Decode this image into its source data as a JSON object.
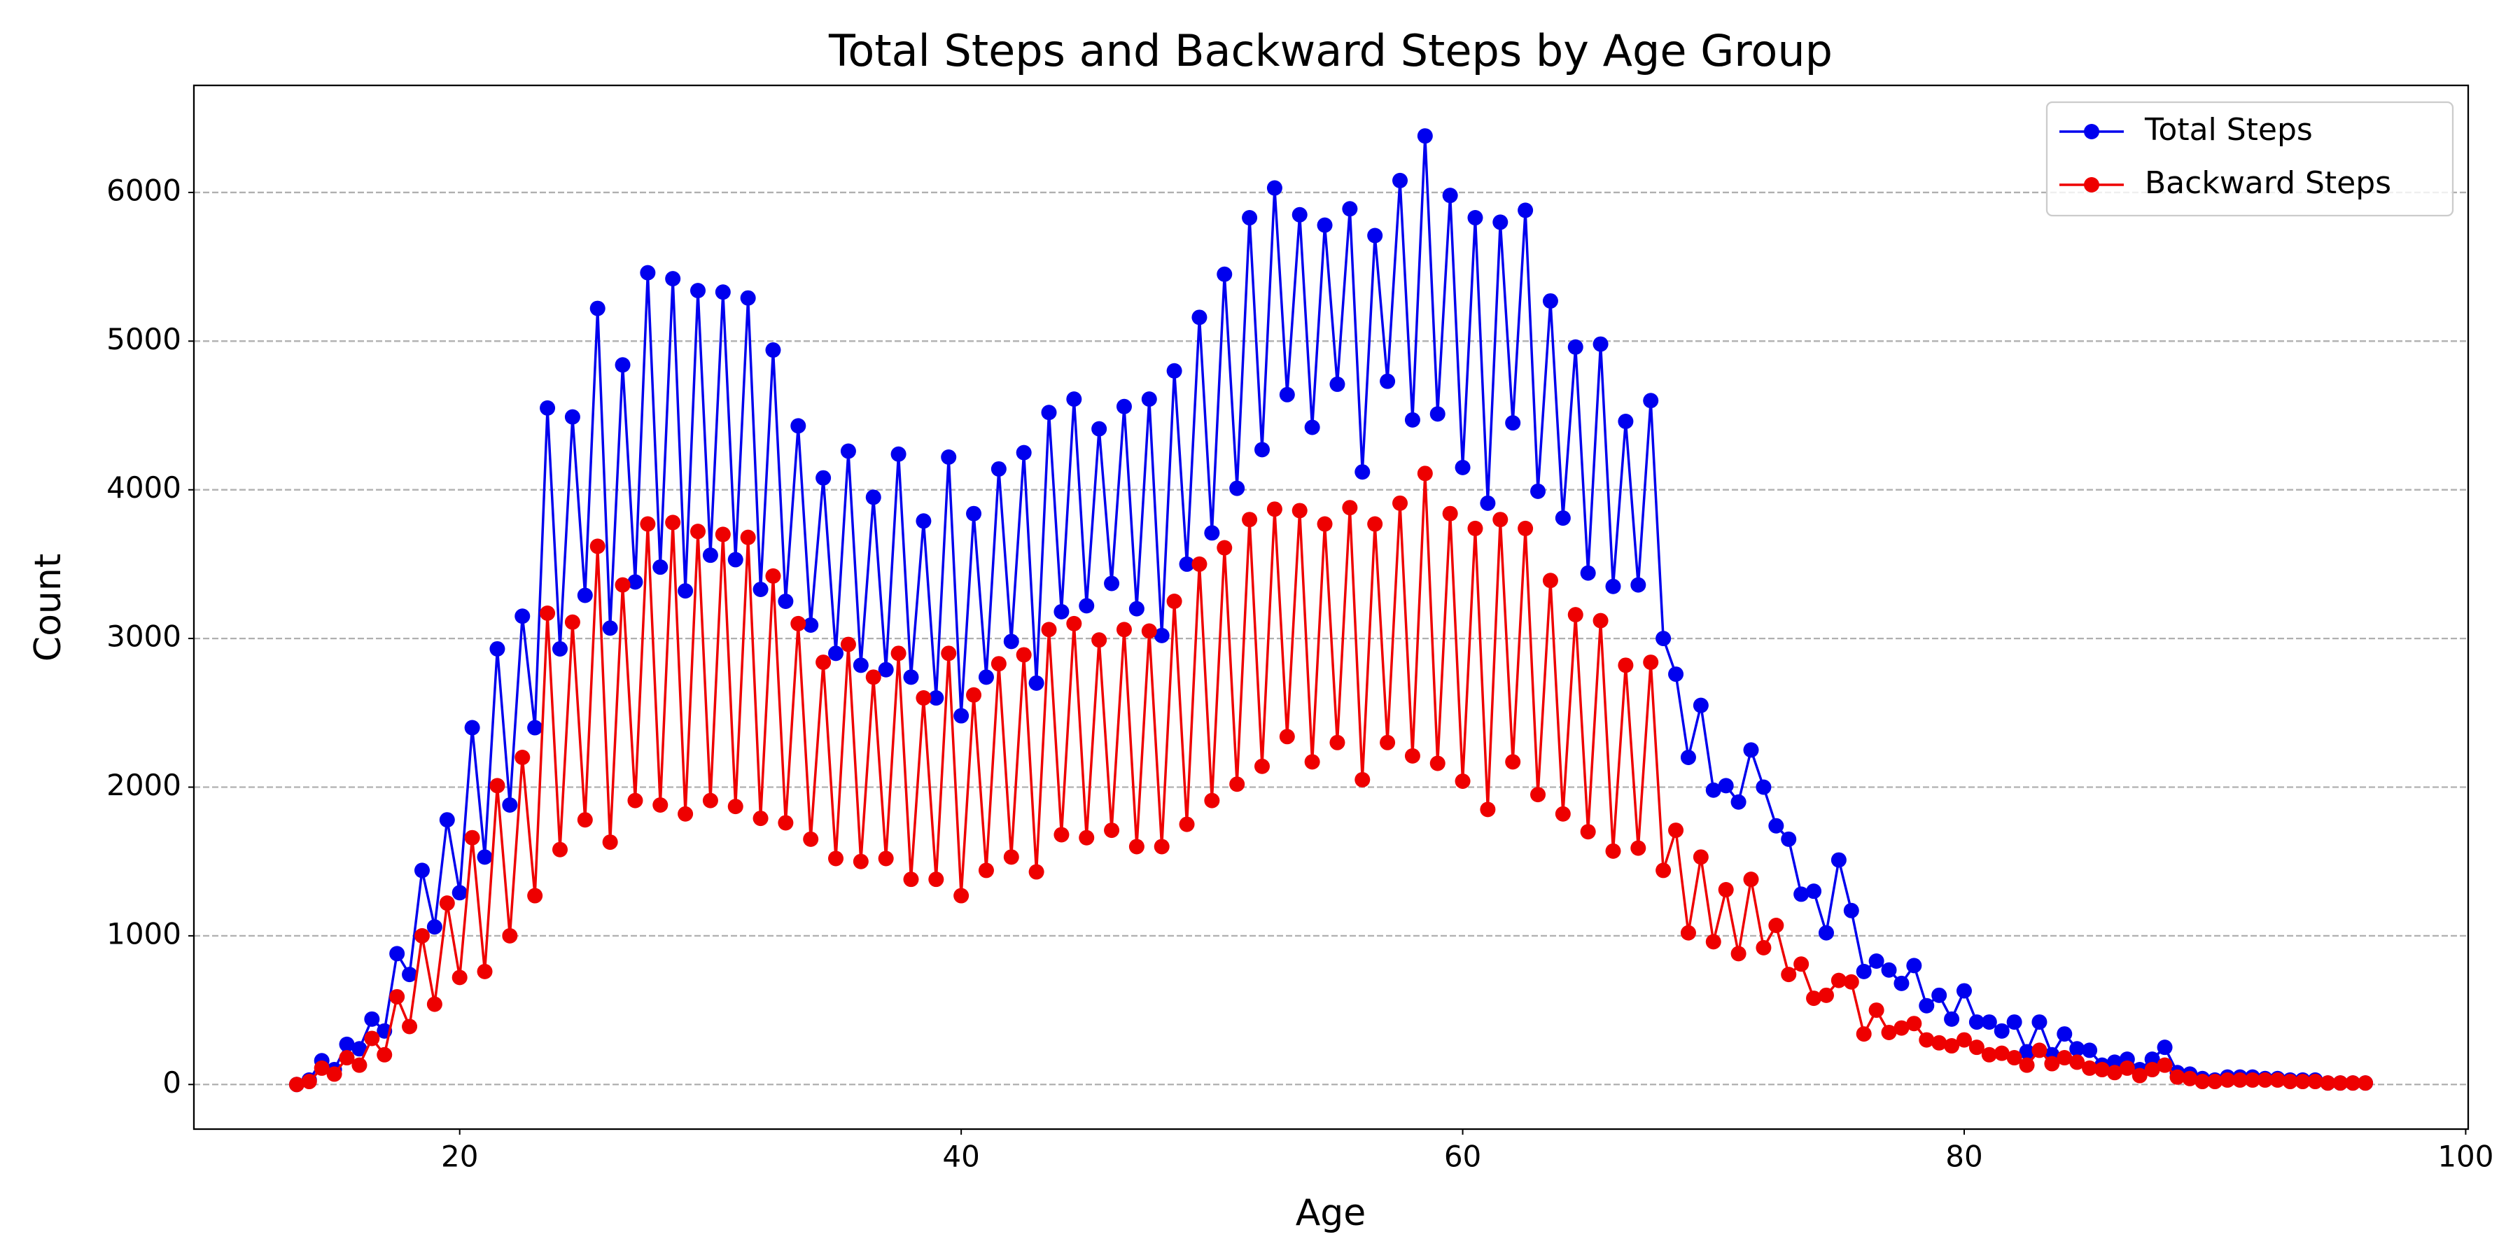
{
  "chart_data": {
    "type": "line",
    "title": "Total Steps and Backward Steps by Age Group",
    "xlabel": "Age",
    "ylabel": "Count",
    "x": [
      13.5,
      14,
      14.5,
      15,
      15.5,
      16,
      16.5,
      17,
      17.5,
      18,
      18.5,
      19,
      19.5,
      20,
      20.5,
      21,
      21.5,
      22,
      22.5,
      23,
      23.5,
      24,
      24.5,
      25,
      25.5,
      26,
      26.5,
      27,
      27.5,
      28,
      28.5,
      29,
      29.5,
      30,
      30.5,
      31,
      31.5,
      32,
      32.5,
      33,
      33.5,
      34,
      34.5,
      35,
      35.5,
      36,
      36.5,
      37,
      37.5,
      38,
      38.5,
      39,
      39.5,
      40,
      40.5,
      41,
      41.5,
      42,
      42.5,
      43,
      43.5,
      44,
      44.5,
      45,
      45.5,
      46,
      46.5,
      47,
      47.5,
      48,
      48.5,
      49,
      49.5,
      50,
      50.5,
      51,
      51.5,
      52,
      52.5,
      53,
      53.5,
      54,
      54.5,
      55,
      55.5,
      56,
      56.5,
      57,
      57.5,
      58,
      58.5,
      59,
      59.5,
      60,
      60.5,
      61,
      61.5,
      62,
      62.5,
      63,
      63.5,
      64,
      64.5,
      65,
      65.5,
      66,
      66.5,
      67,
      67.5,
      68,
      68.5,
      69,
      69.5,
      70,
      70.5,
      71,
      71.5,
      72,
      72.5,
      73,
      73.5,
      74,
      74.5,
      75,
      75.5,
      76,
      76.5,
      77,
      77.5,
      78,
      78.5,
      79,
      79.5,
      80,
      80.5,
      81,
      81.5,
      82,
      82.5,
      83,
      83.5,
      84,
      84.5,
      85,
      85.5,
      86,
      86.5,
      87,
      87.5,
      88,
      88.5,
      89,
      89.5,
      90,
      90.5,
      91,
      91.5,
      92,
      92.5,
      93,
      93.5,
      94,
      94.5,
      95,
      95.5,
      96
    ],
    "series": [
      {
        "name": "Total Steps",
        "color": "#0000ee",
        "values": [
          0,
          30,
          160,
          100,
          270,
          240,
          440,
          360,
          880,
          740,
          1440,
          1060,
          1780,
          1290,
          2400,
          1530,
          2930,
          1880,
          3150,
          2400,
          4550,
          2930,
          4490,
          3290,
          5220,
          3070,
          4840,
          3380,
          5460,
          3480,
          5420,
          3320,
          5340,
          3560,
          5330,
          3530,
          5290,
          3330,
          4940,
          3250,
          4430,
          3090,
          4080,
          2900,
          4260,
          2820,
          3950,
          2790,
          4240,
          2740,
          3790,
          2600,
          4220,
          2480,
          3840,
          2740,
          4140,
          2980,
          4250,
          2700,
          4520,
          3180,
          4610,
          3220,
          4410,
          3370,
          4560,
          3200,
          4610,
          3020,
          4800,
          3500,
          5160,
          3710,
          5450,
          4010,
          5830,
          4270,
          6030,
          4640,
          5850,
          4420,
          5780,
          4710,
          5890,
          4120,
          5710,
          4730,
          6080,
          4470,
          6380,
          4510,
          5980,
          4150,
          5830,
          3910,
          5800,
          4450,
          5880,
          3990,
          5270,
          3810,
          4960,
          3440,
          4980,
          3350,
          4460,
          3360,
          4600,
          3000,
          2760,
          2200,
          2550,
          1980,
          2010,
          1900,
          2250,
          2000,
          1740,
          1650,
          1280,
          1300,
          1020,
          1510,
          1170,
          760,
          830,
          770,
          680,
          800,
          530,
          600,
          440,
          630,
          420,
          420,
          360,
          420,
          220,
          420,
          200,
          340,
          240,
          230,
          130,
          150,
          170,
          100,
          170,
          250,
          80,
          70,
          40,
          30,
          50,
          50,
          50,
          40,
          40,
          30,
          30,
          30,
          10,
          10,
          10,
          10
        ]
      },
      {
        "name": "Backward Steps",
        "color": "#ee0000",
        "values": [
          0,
          20,
          110,
          70,
          180,
          130,
          310,
          200,
          590,
          390,
          1000,
          540,
          1220,
          720,
          1660,
          760,
          2010,
          1000,
          2200,
          1270,
          3170,
          1580,
          3110,
          1780,
          3620,
          1630,
          3360,
          1910,
          3770,
          1880,
          3780,
          1820,
          3720,
          1910,
          3700,
          1870,
          3680,
          1790,
          3420,
          1760,
          3100,
          1650,
          2840,
          1520,
          2960,
          1500,
          2740,
          1520,
          2900,
          1380,
          2600,
          1380,
          2900,
          1270,
          2620,
          1440,
          2830,
          1530,
          2890,
          1430,
          3060,
          1680,
          3100,
          1660,
          2990,
          1710,
          3060,
          1600,
          3050,
          1600,
          3250,
          1750,
          3500,
          1910,
          3610,
          2020,
          3800,
          2140,
          3870,
          2340,
          3860,
          2170,
          3770,
          2300,
          3880,
          2050,
          3770,
          2300,
          3910,
          2210,
          4110,
          2160,
          3840,
          2040,
          3740,
          1850,
          3800,
          2170,
          3740,
          1950,
          3390,
          1820,
          3160,
          1700,
          3120,
          1570,
          2820,
          1590,
          2840,
          1440,
          1710,
          1020,
          1530,
          960,
          1310,
          880,
          1380,
          920,
          1070,
          740,
          810,
          580,
          600,
          700,
          690,
          340,
          500,
          350,
          380,
          410,
          300,
          280,
          260,
          300,
          250,
          200,
          210,
          180,
          130,
          230,
          140,
          180,
          150,
          110,
          100,
          80,
          110,
          60,
          100,
          130,
          50,
          40,
          20,
          20,
          30,
          30,
          30,
          30,
          30,
          20,
          20,
          20,
          10,
          10,
          10,
          10
        ]
      }
    ],
    "xlim": [
      9.4,
      100.1
    ],
    "xticks": [
      20,
      40,
      60,
      80,
      100
    ],
    "ylim": [
      -300,
      6720
    ],
    "yticks": [
      0,
      1000,
      2000,
      3000,
      4000,
      5000,
      6000
    ],
    "grid": "y",
    "legend": "upper right"
  }
}
